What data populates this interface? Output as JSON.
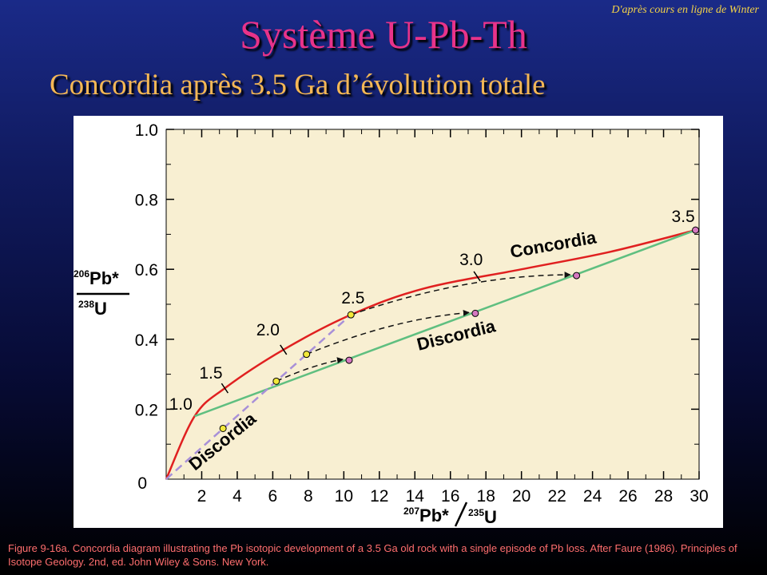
{
  "attribution": "D'après cours en ligne de Winter",
  "title": "Système U-Pb-Th",
  "subtitle": "Concordia après 3.5 Ga d’évolution totale",
  "colors": {
    "plot_background": "#f8efd2",
    "concordia": "#e02020",
    "discordia_final": "#5fbf80",
    "discordia_initial": "#a890d8",
    "yellow_point": "#f2e83a",
    "pink_point": "#d478c0",
    "title": "#e8338a",
    "subtitle": "#f4b755",
    "caption": "#ff6e6e"
  },
  "chart_data": {
    "type": "line",
    "xlabel": {
      "sup": "207",
      "main": "Pb*",
      "denom_sup": "235",
      "denom": "U"
    },
    "ylabel": {
      "num_sup": "206",
      "num": "Pb*",
      "den_sup": "238",
      "den": "U"
    },
    "xlim": [
      0,
      30
    ],
    "ylim": [
      0,
      1.0
    ],
    "x_ticks": [
      2,
      4,
      6,
      8,
      10,
      12,
      14,
      16,
      18,
      20,
      22,
      24,
      26,
      28,
      30
    ],
    "x_tick_labels": [
      "2",
      "4",
      "6",
      "8",
      "10",
      "12",
      "14",
      "16",
      "18",
      "20",
      "22",
      "24",
      "26",
      "28",
      "30"
    ],
    "x_origin_label": "0",
    "y_ticks": [
      0.2,
      0.4,
      0.6,
      0.8,
      1.0
    ],
    "y_tick_labels": [
      "0.2",
      "0.4",
      "0.6",
      "0.8",
      "1.0"
    ],
    "y_minor_ticks": [
      0.1,
      0.3,
      0.5,
      0.7,
      0.9
    ],
    "x_minor_ticks": [
      1,
      3,
      5,
      7,
      9,
      11,
      13,
      15,
      17,
      19,
      21,
      23,
      25,
      27,
      29
    ],
    "y_origin_label": "0",
    "concordia": {
      "name": "Concordia",
      "points": [
        [
          0,
          0
        ],
        [
          1.6,
          0.18
        ],
        [
          3.3,
          0.26
        ],
        [
          6.6,
          0.37
        ],
        [
          10.4,
          0.47
        ],
        [
          14.5,
          0.545
        ],
        [
          20,
          0.6
        ],
        [
          25,
          0.65
        ],
        [
          29.8,
          0.712
        ]
      ]
    },
    "age_labels": [
      {
        "label": "1.0",
        "x": 1.6,
        "y": 0.18
      },
      {
        "label": "1.5",
        "x": 3.3,
        "y": 0.26
      },
      {
        "label": "2.0",
        "x": 6.6,
        "y": 0.37
      },
      {
        "label": "2.5",
        "x": 10.4,
        "y": 0.47
      },
      {
        "label": "3.0",
        "x": 17.5,
        "y": 0.58
      },
      {
        "label": "3.5",
        "x": 29.8,
        "y": 0.712
      }
    ],
    "discordia_final": {
      "name": "Discordia",
      "points": [
        [
          1.6,
          0.18
        ],
        [
          29.8,
          0.712
        ]
      ]
    },
    "discordia_initial": {
      "name": "Discordia",
      "points": [
        [
          0,
          0
        ],
        [
          10.4,
          0.47
        ]
      ]
    },
    "yellow_points": [
      [
        3.2,
        0.145
      ],
      [
        6.2,
        0.28
      ],
      [
        7.9,
        0.357
      ],
      [
        10.4,
        0.47
      ]
    ],
    "pink_points": [
      [
        10.3,
        0.34
      ],
      [
        17.4,
        0.474
      ],
      [
        23.1,
        0.582
      ],
      [
        29.8,
        0.712
      ]
    ],
    "arrows": [
      {
        "from": [
          6.2,
          0.28
        ],
        "to": [
          10.3,
          0.34
        ]
      },
      {
        "from": [
          7.9,
          0.357
        ],
        "to": [
          17.4,
          0.474
        ]
      },
      {
        "from": [
          10.4,
          0.47
        ],
        "to": [
          23.1,
          0.582
        ]
      }
    ]
  },
  "caption": "Figure 9-16a. Concordia diagram illustrating the Pb isotopic development of a 3.5 Ga old rock with a single episode of Pb loss. After Faure (1986). Principles of Isotope Geology. 2nd, ed. John Wiley & Sons. New York."
}
